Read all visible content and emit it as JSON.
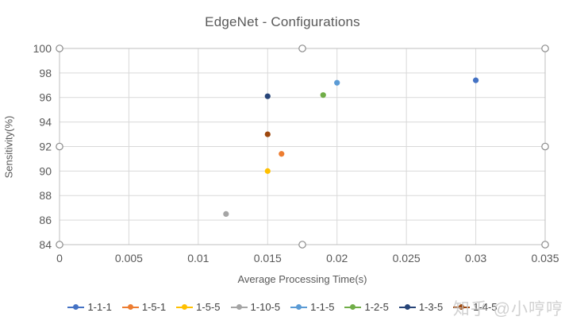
{
  "watermark": {
    "text": "知乎 @小哼哼"
  },
  "chart_data": {
    "type": "scatter",
    "title": "EdgeNet - Configurations",
    "xlabel": "Average Processing Time(s)",
    "ylabel": "Sensitivity(%)",
    "xlim": [
      0,
      0.035
    ],
    "ylim": [
      84,
      100
    ],
    "x_ticks": [
      0,
      0.005,
      0.01,
      0.015,
      0.02,
      0.025,
      0.03,
      0.035
    ],
    "x_tick_labels": [
      "0",
      "0.005",
      "0.01",
      "0.015",
      "0.02",
      "0.025",
      "0.03",
      "0.035"
    ],
    "y_ticks": [
      84,
      86,
      88,
      90,
      92,
      94,
      96,
      98,
      100
    ],
    "y_tick_labels": [
      "84",
      "86",
      "88",
      "90",
      "92",
      "94",
      "96",
      "98",
      "100"
    ],
    "grid": true,
    "legend_position": "bottom",
    "plot_area_selected": true,
    "series": [
      {
        "name": "1-1-1",
        "color": "#4472C4",
        "points": [
          [
            0.03,
            97.4
          ]
        ]
      },
      {
        "name": "1-5-1",
        "color": "#ED7D31",
        "points": [
          [
            0.016,
            91.4
          ]
        ]
      },
      {
        "name": "1-5-5",
        "color": "#FFC000",
        "points": [
          [
            0.015,
            90.0
          ]
        ]
      },
      {
        "name": "1-10-5",
        "color": "#A5A5A5",
        "points": [
          [
            0.012,
            86.5
          ]
        ]
      },
      {
        "name": "1-1-5",
        "color": "#5B9BD5",
        "points": [
          [
            0.02,
            97.2
          ]
        ]
      },
      {
        "name": "1-2-5",
        "color": "#70AD47",
        "points": [
          [
            0.019,
            96.2
          ]
        ]
      },
      {
        "name": "1-3-5",
        "color": "#264478",
        "points": [
          [
            0.015,
            96.1
          ]
        ]
      },
      {
        "name": "1-4-5",
        "color": "#9E480E",
        "points": [
          [
            0.015,
            93.0
          ]
        ]
      }
    ],
    "colors": {
      "gridline": "#D9D9D9",
      "plot_border": "#BFBFBF",
      "handle_stroke": "#8C8C8C",
      "tick_label": "#595959",
      "title": "#595959",
      "legend_text": "#404040"
    }
  }
}
